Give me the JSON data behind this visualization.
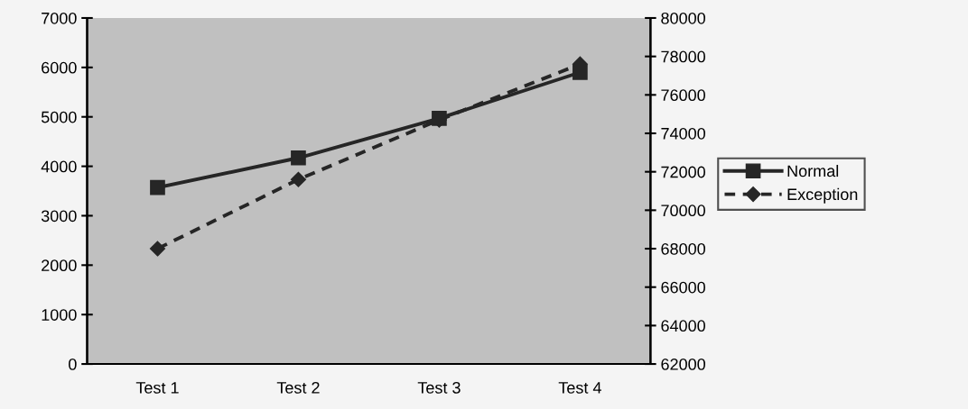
{
  "chart_data": {
    "type": "line",
    "categories": [
      "Test 1",
      "Test 2",
      "Test 3",
      "Test 4"
    ],
    "series": [
      {
        "name": "Normal",
        "color": "#262626",
        "values": [
          3570,
          4170,
          4970,
          5900
        ],
        "marker": "square",
        "line_style": "solid"
      },
      {
        "name": "Exception",
        "color": "#262626",
        "values": [
          68000,
          71600,
          74700,
          77600
        ],
        "axis": "y2",
        "marker": "diamond",
        "line_style": "dashed"
      }
    ],
    "ylim": [
      0,
      7000
    ],
    "yticks": [
      0,
      1000,
      2000,
      3000,
      4000,
      5000,
      6000,
      7000
    ],
    "y2lim": [
      62000,
      80000
    ],
    "y2ticks": [
      62000,
      64000,
      66000,
      68000,
      70000,
      72000,
      74000,
      76000,
      78000,
      80000
    ],
    "grid": false,
    "legend": "right"
  }
}
